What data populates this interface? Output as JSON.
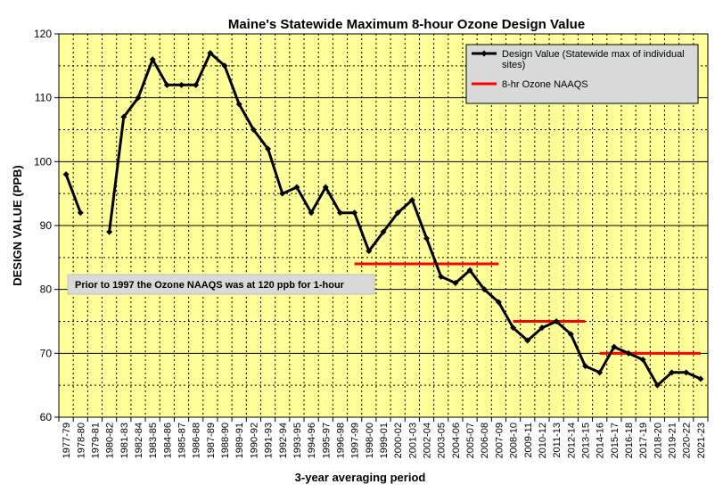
{
  "chart_data": {
    "type": "line",
    "title": "Maine's Statewide Maximum 8-hour Ozone Design Value",
    "xlabel": "3-year averaging period",
    "ylabel": "DESIGN VALUE (PPB)",
    "ylim": [
      60,
      120
    ],
    "yticks": [
      60,
      70,
      80,
      90,
      100,
      110,
      120
    ],
    "grid": true,
    "legend_position": "top-right",
    "categories": [
      "1977-79",
      "1978-80",
      "1979-81",
      "1980-82",
      "1981-83",
      "1982-84",
      "1983-85",
      "1984-86",
      "1985-87",
      "1986-88",
      "1987-89",
      "1988-90",
      "1989-91",
      "1990-92",
      "1991-93",
      "1992-94",
      "1993-95",
      "1994-96",
      "1995-97",
      "1996-98",
      "1997-99",
      "1998-00",
      "1999-01",
      "2000-02",
      "2001-03",
      "2002-04",
      "2003-05",
      "2004-06",
      "2005-07",
      "2006-08",
      "2007-09",
      "2008-10",
      "2009-11",
      "2010-12",
      "2011-13",
      "2012-14",
      "2013-15",
      "2014-16",
      "2015-17",
      "2016-18",
      "2017-19",
      "2018-20",
      "2019-21",
      "2020-22",
      "2021-23"
    ],
    "series": [
      {
        "name": "Design Value (Statewide max of individual sites)",
        "color": "#000000",
        "values": [
          98,
          92,
          null,
          89,
          107,
          110,
          116,
          112,
          112,
          112,
          117,
          115,
          109,
          105,
          102,
          95,
          96,
          92,
          96,
          92,
          92,
          86,
          89,
          92,
          94,
          88,
          82,
          81,
          83,
          80,
          78,
          74,
          72,
          74,
          75,
          73,
          68,
          67,
          71,
          70,
          69,
          65,
          67,
          67,
          66
        ]
      },
      {
        "name": "8-hr Ozone NAAQS",
        "color": "#ff0000",
        "segments": [
          {
            "from": "1997-99",
            "to": "2007-09",
            "value": 84
          },
          {
            "from": "2008-10",
            "to": "2013-15",
            "value": 75
          },
          {
            "from": "2014-16",
            "to": "2021-23",
            "value": 70
          }
        ]
      }
    ],
    "annotation": "Prior to 1997 the Ozone NAAQS was at 120 ppb for 1-hour",
    "colors": {
      "plot_background": "#ffff99",
      "grid": "#000000",
      "annotation_background": "#d9d9d9",
      "legend_background": "#d9d9d9"
    }
  }
}
